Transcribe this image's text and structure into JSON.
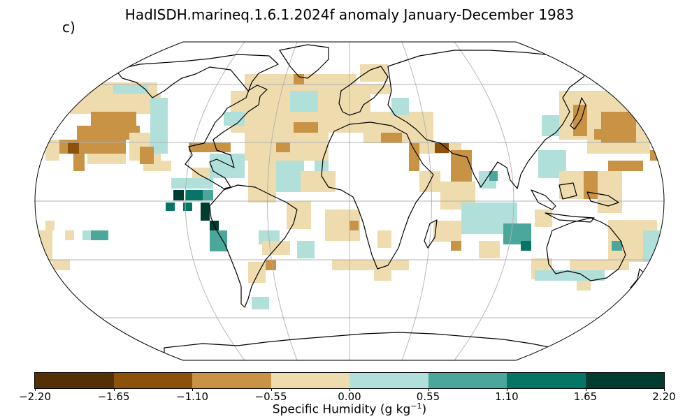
{
  "title": "HadISDH.marineq.1.6.1.2024f anomaly January-December 1983",
  "panel_label": "c)",
  "colorbar": {
    "label_text": "Specific Humidity (g kg",
    "label_sup": "−1",
    "label_close": ")",
    "tick_labels": [
      "−2.20",
      "−1.65",
      "−1.10",
      "−0.55",
      "0.00",
      "0.55",
      "1.10",
      "1.65",
      "2.20"
    ],
    "colors": [
      "#543005",
      "#8c510a",
      "#c89344",
      "#eedbae",
      "#b1e0db",
      "#4ba79c",
      "#077468",
      "#003c30"
    ]
  },
  "map": {
    "projection": "Robinson",
    "graticule": true,
    "features": [
      "coastlines",
      "gridded anomaly boxes (5 degree)"
    ]
  }
}
